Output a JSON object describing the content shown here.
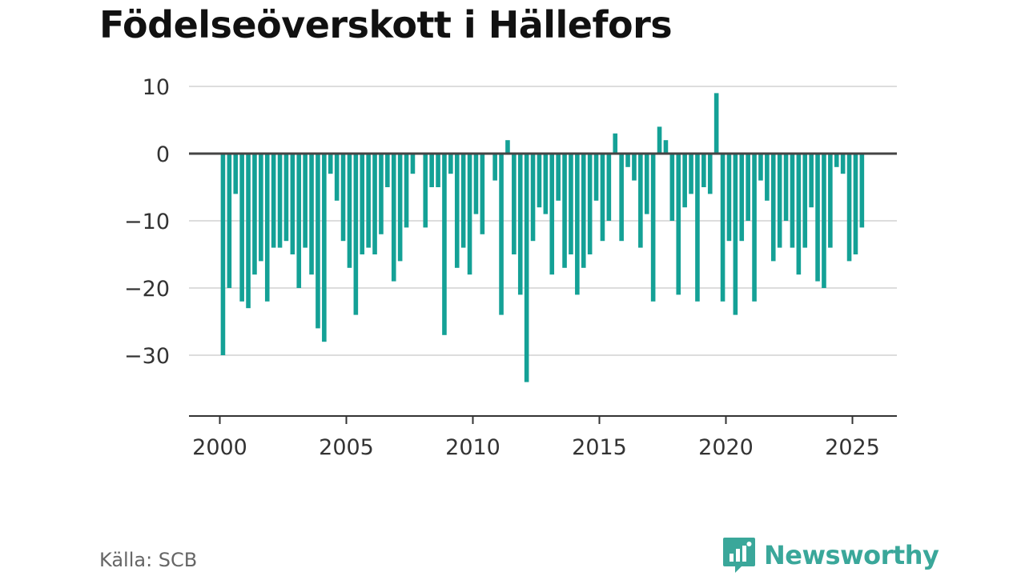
{
  "title": "Födelseöverskott i Hällefors",
  "source": "Källa: SCB",
  "brand": {
    "name": "Newsworthy",
    "icon": "bar-chart-speech-bubble-icon",
    "color": "#3aa79a"
  },
  "chart_data": {
    "type": "bar",
    "title": "Födelseöverskott i Hällefors",
    "xlabel": "",
    "ylabel": "",
    "bar_color": "#14a196",
    "ylim": [
      -40,
      12
    ],
    "xlim": [
      1999.0,
      2026.9
    ],
    "y_ticks": [
      10,
      0,
      -10,
      -20,
      -30
    ],
    "y_tick_labels": [
      "10",
      "0",
      "−10",
      "−20",
      "−30"
    ],
    "x_ticks": [
      2000,
      2005,
      2010,
      2015,
      2020,
      2025
    ],
    "x_tick_labels": [
      "2000",
      "2005",
      "2010",
      "2015",
      "2020",
      "2025"
    ],
    "grid": true,
    "legend": "none",
    "bars": [
      {
        "x": 2000.125,
        "value": -30
      },
      {
        "x": 2000.375,
        "value": -20
      },
      {
        "x": 2000.625,
        "value": -6
      },
      {
        "x": 2000.875,
        "value": -22
      },
      {
        "x": 2001.125,
        "value": -23
      },
      {
        "x": 2001.375,
        "value": -18
      },
      {
        "x": 2001.625,
        "value": -16
      },
      {
        "x": 2001.875,
        "value": -22
      },
      {
        "x": 2002.125,
        "value": -14
      },
      {
        "x": 2002.375,
        "value": -14
      },
      {
        "x": 2002.625,
        "value": -13
      },
      {
        "x": 2002.875,
        "value": -15
      },
      {
        "x": 2003.125,
        "value": -20
      },
      {
        "x": 2003.375,
        "value": -14
      },
      {
        "x": 2003.625,
        "value": -18
      },
      {
        "x": 2003.875,
        "value": -26
      },
      {
        "x": 2004.125,
        "value": -28
      },
      {
        "x": 2004.375,
        "value": -3
      },
      {
        "x": 2004.625,
        "value": -7
      },
      {
        "x": 2004.875,
        "value": -13
      },
      {
        "x": 2005.125,
        "value": -17
      },
      {
        "x": 2005.375,
        "value": -24
      },
      {
        "x": 2005.625,
        "value": -15
      },
      {
        "x": 2005.875,
        "value": -14
      },
      {
        "x": 2006.125,
        "value": -15
      },
      {
        "x": 2006.375,
        "value": -12
      },
      {
        "x": 2006.625,
        "value": -5
      },
      {
        "x": 2006.875,
        "value": -19
      },
      {
        "x": 2007.125,
        "value": -16
      },
      {
        "x": 2007.375,
        "value": -11
      },
      {
        "x": 2007.625,
        "value": -3
      },
      {
        "x": 2008.125,
        "value": -11
      },
      {
        "x": 2008.375,
        "value": -5
      },
      {
        "x": 2008.625,
        "value": -5
      },
      {
        "x": 2008.875,
        "value": -27
      },
      {
        "x": 2009.125,
        "value": -3
      },
      {
        "x": 2009.375,
        "value": -17
      },
      {
        "x": 2009.625,
        "value": -14
      },
      {
        "x": 2009.875,
        "value": -18
      },
      {
        "x": 2010.125,
        "value": -9
      },
      {
        "x": 2010.375,
        "value": -12
      },
      {
        "x": 2010.875,
        "value": -4
      },
      {
        "x": 2011.125,
        "value": -24
      },
      {
        "x": 2011.375,
        "value": 2
      },
      {
        "x": 2011.625,
        "value": -15
      },
      {
        "x": 2011.875,
        "value": -21
      },
      {
        "x": 2012.125,
        "value": -34
      },
      {
        "x": 2012.375,
        "value": -13
      },
      {
        "x": 2012.625,
        "value": -8
      },
      {
        "x": 2012.875,
        "value": -9
      },
      {
        "x": 2013.125,
        "value": -18
      },
      {
        "x": 2013.375,
        "value": -7
      },
      {
        "x": 2013.625,
        "value": -17
      },
      {
        "x": 2013.875,
        "value": -15
      },
      {
        "x": 2014.125,
        "value": -21
      },
      {
        "x": 2014.375,
        "value": -17
      },
      {
        "x": 2014.625,
        "value": -15
      },
      {
        "x": 2014.875,
        "value": -7
      },
      {
        "x": 2015.125,
        "value": -13
      },
      {
        "x": 2015.375,
        "value": -10
      },
      {
        "x": 2015.625,
        "value": 3
      },
      {
        "x": 2015.875,
        "value": -13
      },
      {
        "x": 2016.125,
        "value": -2
      },
      {
        "x": 2016.375,
        "value": -4
      },
      {
        "x": 2016.625,
        "value": -14
      },
      {
        "x": 2016.875,
        "value": -9
      },
      {
        "x": 2017.125,
        "value": -22
      },
      {
        "x": 2017.375,
        "value": 4
      },
      {
        "x": 2017.625,
        "value": 2
      },
      {
        "x": 2017.875,
        "value": -10
      },
      {
        "x": 2018.125,
        "value": -21
      },
      {
        "x": 2018.375,
        "value": -8
      },
      {
        "x": 2018.625,
        "value": -6
      },
      {
        "x": 2018.875,
        "value": -22
      },
      {
        "x": 2019.125,
        "value": -5
      },
      {
        "x": 2019.375,
        "value": -6
      },
      {
        "x": 2019.625,
        "value": 9
      },
      {
        "x": 2019.875,
        "value": -22
      },
      {
        "x": 2020.125,
        "value": -13
      },
      {
        "x": 2020.375,
        "value": -24
      },
      {
        "x": 2020.625,
        "value": -13
      },
      {
        "x": 2020.875,
        "value": -10
      },
      {
        "x": 2021.125,
        "value": -22
      },
      {
        "x": 2021.375,
        "value": -4
      },
      {
        "x": 2021.625,
        "value": -7
      },
      {
        "x": 2021.875,
        "value": -16
      },
      {
        "x": 2022.125,
        "value": -14
      },
      {
        "x": 2022.375,
        "value": -10
      },
      {
        "x": 2022.625,
        "value": -14
      },
      {
        "x": 2022.875,
        "value": -18
      },
      {
        "x": 2023.125,
        "value": -14
      },
      {
        "x": 2023.375,
        "value": -8
      },
      {
        "x": 2023.625,
        "value": -19
      },
      {
        "x": 2023.875,
        "value": -20
      },
      {
        "x": 2024.125,
        "value": -14
      },
      {
        "x": 2024.375,
        "value": -2
      },
      {
        "x": 2024.625,
        "value": -3
      },
      {
        "x": 2024.875,
        "value": -16
      },
      {
        "x": 2025.125,
        "value": -15
      },
      {
        "x": 2025.375,
        "value": -11
      }
    ]
  }
}
